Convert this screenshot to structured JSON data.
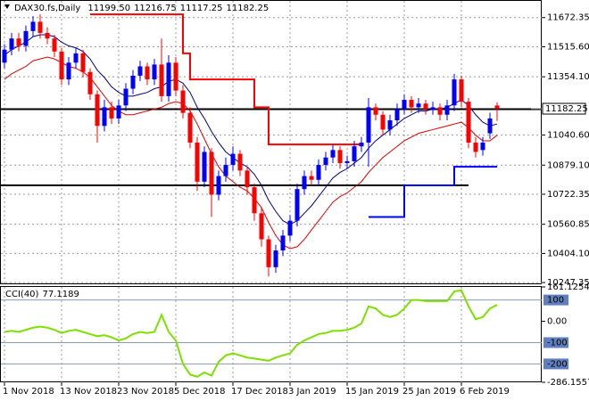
{
  "chart_data": {
    "type": "candlestick",
    "title": "DAX30.fs,Daily",
    "last_labels": [
      "11199.50",
      "11216.75",
      "11117.25",
      "11182.25"
    ],
    "categories": [
      "1 Nov 2018",
      null,
      null,
      null,
      null,
      null,
      null,
      null,
      "13 Nov 2018",
      null,
      null,
      null,
      null,
      null,
      null,
      null,
      "23 Nov 2018",
      null,
      null,
      null,
      null,
      null,
      null,
      null,
      "5 Dec 2018",
      null,
      null,
      null,
      null,
      null,
      null,
      null,
      "17 Dec 2018",
      null,
      null,
      null,
      null,
      null,
      null,
      null,
      "3 Jan 2019",
      null,
      null,
      null,
      null,
      null,
      null,
      null,
      "15 Jan 2019",
      null,
      null,
      null,
      null,
      null,
      null,
      null,
      "25 Jan 2019",
      null,
      null,
      null,
      null,
      null,
      null,
      null,
      "6 Feb 2019",
      null,
      null,
      null,
      null,
      null
    ],
    "open": [
      11430,
      11500,
      11560,
      11520,
      11600,
      11650,
      11590,
      11560,
      11490,
      11340,
      11430,
      11480,
      11380,
      11260,
      11090,
      11190,
      11130,
      11200,
      11290,
      11360,
      11410,
      11340,
      11420,
      11250,
      11430,
      11280,
      11160,
      11000,
      10790,
      10950,
      10720,
      10820,
      10880,
      10940,
      10850,
      10760,
      10620,
      10480,
      10330,
      10420,
      10500,
      10580,
      10750,
      10820,
      10800,
      10880,
      10920,
      10960,
      10890,
      10900,
      10980,
      11000,
      11190,
      11150,
      11070,
      11120,
      11180,
      11230,
      11190,
      11210,
      11180,
      11190,
      11150,
      11200,
      11340,
      11220,
      11000,
      10960,
      11050,
      11199.5
    ],
    "high": [
      11530,
      11590,
      11590,
      11630,
      11680,
      11690,
      11620,
      11580,
      11510,
      11460,
      11510,
      11500,
      11400,
      11280,
      11230,
      11220,
      11230,
      11320,
      11390,
      11440,
      11430,
      11450,
      11560,
      11470,
      11460,
      11310,
      11190,
      11030,
      10980,
      10970,
      10850,
      10920,
      10980,
      10960,
      10870,
      10780,
      10650,
      10500,
      10450,
      10530,
      10610,
      10780,
      10850,
      10850,
      10910,
      10950,
      10990,
      10980,
      10930,
      11010,
      11030,
      11240,
      11210,
      11170,
      11150,
      11210,
      11260,
      11250,
      11240,
      11230,
      11220,
      11210,
      11230,
      11370,
      11360,
      11240,
      11030,
      11030,
      11160,
      11216.75
    ],
    "low": [
      11400,
      11470,
      11490,
      11490,
      11570,
      11560,
      11530,
      11460,
      11310,
      11310,
      11400,
      11350,
      11230,
      11000,
      11060,
      11100,
      11100,
      11170,
      11260,
      11330,
      11310,
      11310,
      11220,
      11220,
      11250,
      11130,
      10970,
      10740,
      10760,
      10600,
      10690,
      10790,
      10850,
      10820,
      10720,
      10580,
      10440,
      10280,
      10300,
      10390,
      10470,
      10550,
      10720,
      10770,
      10770,
      10850,
      10890,
      10860,
      10860,
      10870,
      10950,
      10870,
      11120,
      11040,
      11040,
      11090,
      11150,
      11160,
      11160,
      11150,
      11150,
      11120,
      11120,
      11170,
      11190,
      10970,
      10920,
      10930,
      11020,
      11117.25
    ],
    "close": [
      11500,
      11560,
      11520,
      11600,
      11650,
      11590,
      11560,
      11490,
      11340,
      11430,
      11480,
      11380,
      11260,
      11090,
      11190,
      11130,
      11200,
      11290,
      11360,
      11410,
      11340,
      11420,
      11250,
      11430,
      11280,
      11160,
      11000,
      10790,
      10950,
      10720,
      10820,
      10880,
      10940,
      10850,
      10760,
      10620,
      10480,
      10330,
      10420,
      10500,
      10580,
      10750,
      10820,
      10800,
      10880,
      10920,
      10960,
      10890,
      10900,
      10980,
      11000,
      11190,
      11150,
      11070,
      11120,
      11180,
      11230,
      11190,
      11210,
      11180,
      11190,
      11150,
      11200,
      11340,
      11220,
      11000,
      10950,
      11000,
      11130,
      11182.25
    ],
    "up_color": "#0000ff",
    "down_color": "#ff0000",
    "series": [
      {
        "color": "#000080",
        "values": [
          11470,
          11500,
          11520,
          11540,
          11570,
          11580,
          11580,
          11570,
          11540,
          11520,
          11510,
          11490,
          11450,
          11390,
          11350,
          11300,
          11270,
          11250,
          11250,
          11260,
          11270,
          11290,
          11300,
          11330,
          11340,
          11320,
          11270,
          11190,
          11130,
          11060,
          11000,
          10950,
          10920,
          10890,
          10870,
          10830,
          10770,
          10690,
          10630,
          10580,
          10560,
          10580,
          10620,
          10660,
          10710,
          10760,
          10810,
          10840,
          10860,
          10890,
          10920,
          10970,
          11010,
          11040,
          11070,
          11100,
          11130,
          11150,
          11170,
          11170,
          11180,
          11180,
          11190,
          11210,
          11230,
          11200,
          11150,
          11110,
          11090,
          11100
        ]
      },
      {
        "color": "#e00000",
        "values": [
          11340,
          11370,
          11390,
          11410,
          11440,
          11450,
          11460,
          11450,
          11430,
          11410,
          11400,
          11380,
          11350,
          11300,
          11250,
          11200,
          11170,
          11150,
          11150,
          11160,
          11170,
          11180,
          11190,
          11210,
          11220,
          11210,
          11170,
          11100,
          11020,
          10940,
          10870,
          10820,
          10790,
          10760,
          10740,
          10700,
          10650,
          10570,
          10500,
          10450,
          10430,
          10440,
          10480,
          10530,
          10580,
          10630,
          10680,
          10710,
          10730,
          10760,
          10790,
          10840,
          10880,
          10920,
          10950,
          10980,
          11010,
          11030,
          11050,
          11060,
          11070,
          11080,
          11090,
          11100,
          11110,
          11080,
          11040,
          11010,
          11010,
          11040
        ]
      },
      {
        "color": "#ff0000",
        "style": "step",
        "values": [
          null,
          null,
          null,
          null,
          null,
          null,
          null,
          null,
          null,
          null,
          null,
          null,
          11690,
          11690,
          11690,
          11690,
          11690,
          11690,
          11690,
          11690,
          11690,
          11690,
          11690,
          11690,
          11690,
          11480,
          11340,
          11340,
          11340,
          11340,
          11340,
          11340,
          11340,
          11340,
          11340,
          11190,
          11190,
          10990,
          10990,
          10990,
          10990,
          10990,
          10990,
          10990,
          10990,
          10990,
          10990,
          10990,
          10990,
          10990,
          10990,
          null,
          null,
          null,
          null,
          null,
          null,
          null,
          null,
          null,
          null,
          null,
          null,
          null,
          null,
          null,
          null,
          null,
          null,
          null
        ]
      },
      {
        "color": "#0000ff",
        "style": "step",
        "values": [
          null,
          null,
          null,
          null,
          null,
          null,
          null,
          null,
          null,
          null,
          null,
          null,
          null,
          null,
          null,
          null,
          null,
          null,
          null,
          null,
          null,
          null,
          null,
          null,
          null,
          null,
          null,
          null,
          null,
          null,
          null,
          null,
          null,
          null,
          null,
          null,
          null,
          null,
          null,
          null,
          null,
          null,
          null,
          null,
          null,
          null,
          null,
          null,
          null,
          null,
          null,
          10600,
          10600,
          10600,
          10600,
          10600,
          10770,
          10770,
          10770,
          10770,
          10770,
          10770,
          10770,
          10870,
          10870,
          10870,
          10870,
          10870,
          10870,
          10870
        ]
      }
    ],
    "hlines": [
      {
        "value": 11180
      },
      {
        "value": 10770,
        "to": 65
      }
    ],
    "ylim": [
      10243,
      11767
    ],
    "yticks": [
      11672.35,
      {
        "value": 11515.6,
        "label": "11515.60"
      },
      {
        "value": 11354.1,
        "label": "11354.10"
      },
      {
        "value": 11040.6,
        "label": "11040.60"
      },
      {
        "value": 10879.1,
        "label": "10879.10"
      },
      10722.35,
      10560.85,
      {
        "value": 10404.1,
        "label": "10404.10"
      },
      10247.35
    ],
    "grid": true,
    "cci": {
      "title": "CCI(40)",
      "color": "#7ee000",
      "values": [
        -50,
        -45,
        -50,
        -40,
        -30,
        -25,
        -30,
        -40,
        -55,
        -45,
        -40,
        -50,
        -60,
        -70,
        -65,
        -75,
        -90,
        -80,
        -60,
        -50,
        -55,
        -50,
        30,
        -50,
        -90,
        -200,
        -250,
        -260,
        -240,
        -255,
        -190,
        -160,
        -150,
        -160,
        -170,
        -175,
        -180,
        -185,
        -170,
        -160,
        -150,
        -110,
        -90,
        -75,
        -60,
        -55,
        -45,
        -45,
        -40,
        -30,
        -10,
        70,
        60,
        30,
        20,
        30,
        60,
        100,
        100,
        95,
        95,
        95,
        95,
        140,
        145,
        70,
        10,
        20,
        60,
        77.1189
      ],
      "ylim": [
        -286.1557,
        161.1254
      ],
      "yticks": [
        161.1254,
        {
          "value": 0,
          "label": "0.00"
        },
        -286.1557
      ],
      "levels": [
        100,
        -100,
        -200
      ]
    }
  }
}
